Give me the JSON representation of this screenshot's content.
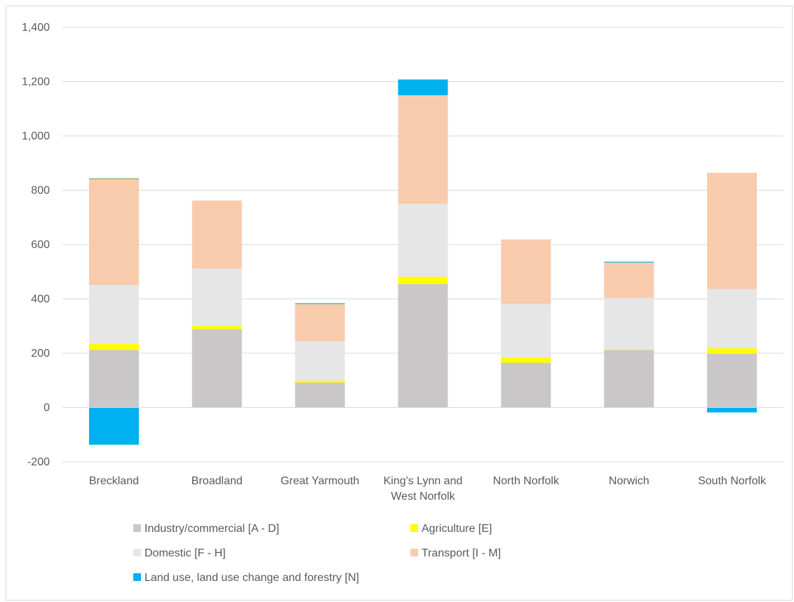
{
  "chart_data": {
    "type": "bar",
    "stacked": true,
    "categories": [
      [
        "Breckland"
      ],
      [
        "Broadland"
      ],
      [
        "Great Yarmouth"
      ],
      [
        "King's Lynn and",
        "West Norfolk"
      ],
      [
        "North Norfolk"
      ],
      [
        "Norwich"
      ],
      [
        "South Norfolk"
      ]
    ],
    "series": [
      {
        "name": "Industry/commercial [A - D]",
        "color": "#c9c7c8",
        "values": [
          212,
          288,
          92,
          455,
          165,
          212,
          198
        ]
      },
      {
        "name": "Agriculture [E]",
        "color": "#ffff00",
        "values": [
          22,
          12,
          7,
          27,
          19,
          2,
          20
        ]
      },
      {
        "name": "Domestic [F - H]",
        "color": "#e6e6e6",
        "values": [
          217,
          212,
          145,
          268,
          198,
          190,
          218
        ]
      },
      {
        "name": "Transport [I - M]",
        "color": "#f8cbad",
        "values": [
          390,
          250,
          137,
          400,
          237,
          130,
          428
        ]
      },
      {
        "name": "Land use, land use change and forestry [N]",
        "color": "#00b0f0",
        "values": [
          -137,
          0,
          3,
          58,
          0,
          3,
          -18
        ]
      }
    ],
    "extra_series": [
      {
        "name": "",
        "color": "#70ad47",
        "values": [
          3,
          0,
          0,
          0,
          0,
          0,
          0
        ]
      }
    ],
    "ylim": [
      -200,
      1400
    ],
    "yticks": [
      -200,
      0,
      200,
      400,
      600,
      800,
      1000,
      1200,
      1400
    ],
    "ytick_labels": [
      "-200",
      "0",
      "200",
      "400",
      "600",
      "800",
      "1,000",
      "1,200",
      "1,400"
    ],
    "grid": true,
    "legend_position": "bottom",
    "title": "",
    "xlabel": "",
    "ylabel": ""
  }
}
